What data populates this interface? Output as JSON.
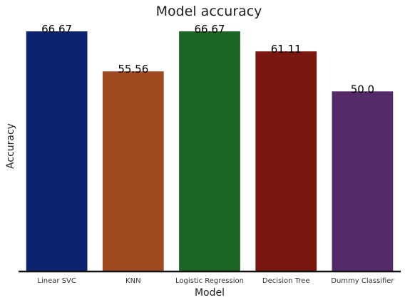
{
  "chart_data": {
    "type": "bar",
    "title": "Model accuracy",
    "xlabel": "Model",
    "ylabel": "Accuracy",
    "categories": [
      "Linear SVC",
      "KNN",
      "Logistic Regression",
      "Decision Tree",
      "Dummy Classifier"
    ],
    "values": [
      66.67,
      55.56,
      66.67,
      61.11,
      50.0
    ],
    "data_labels": [
      "66.67",
      "55.56",
      "66.67",
      "61.11",
      "50.0"
    ],
    "colors": [
      "#0c2470",
      "#a04a22",
      "#1d6524",
      "#7b1711",
      "#552a68"
    ],
    "ylim": [
      0,
      66.67
    ],
    "grid": false,
    "legend": "none"
  }
}
